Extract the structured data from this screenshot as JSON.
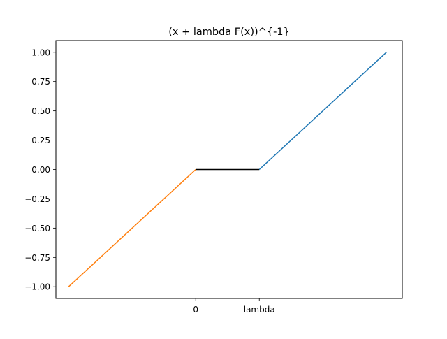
{
  "chart_data": {
    "type": "line",
    "title": "(x + lambda F(x))^{-1}",
    "xlabel": "",
    "ylabel": "",
    "x_tick_positions": [
      0,
      1
    ],
    "x_tick_labels": [
      "0",
      "lambda"
    ],
    "y_ticks": [
      -1.0,
      -0.75,
      -0.5,
      -0.25,
      0.0,
      0.25,
      0.5,
      0.75,
      1.0
    ],
    "y_tick_labels": [
      "−1.00",
      "−0.75",
      "−0.50",
      "−0.25",
      "0.00",
      "0.25",
      "0.50",
      "0.75",
      "1.00"
    ],
    "xlim": [
      -2.2,
      3.25
    ],
    "ylim": [
      -1.1,
      1.1
    ],
    "grid": false,
    "legend": "none",
    "series": [
      {
        "color": "#ff7f0e",
        "x": [
          -2,
          0
        ],
        "y": [
          -1,
          0
        ]
      },
      {
        "color": "#000000",
        "x": [
          0,
          1
        ],
        "y": [
          0,
          0
        ]
      },
      {
        "color": "#1f77b4",
        "x": [
          1,
          3
        ],
        "y": [
          0,
          1
        ]
      }
    ]
  }
}
